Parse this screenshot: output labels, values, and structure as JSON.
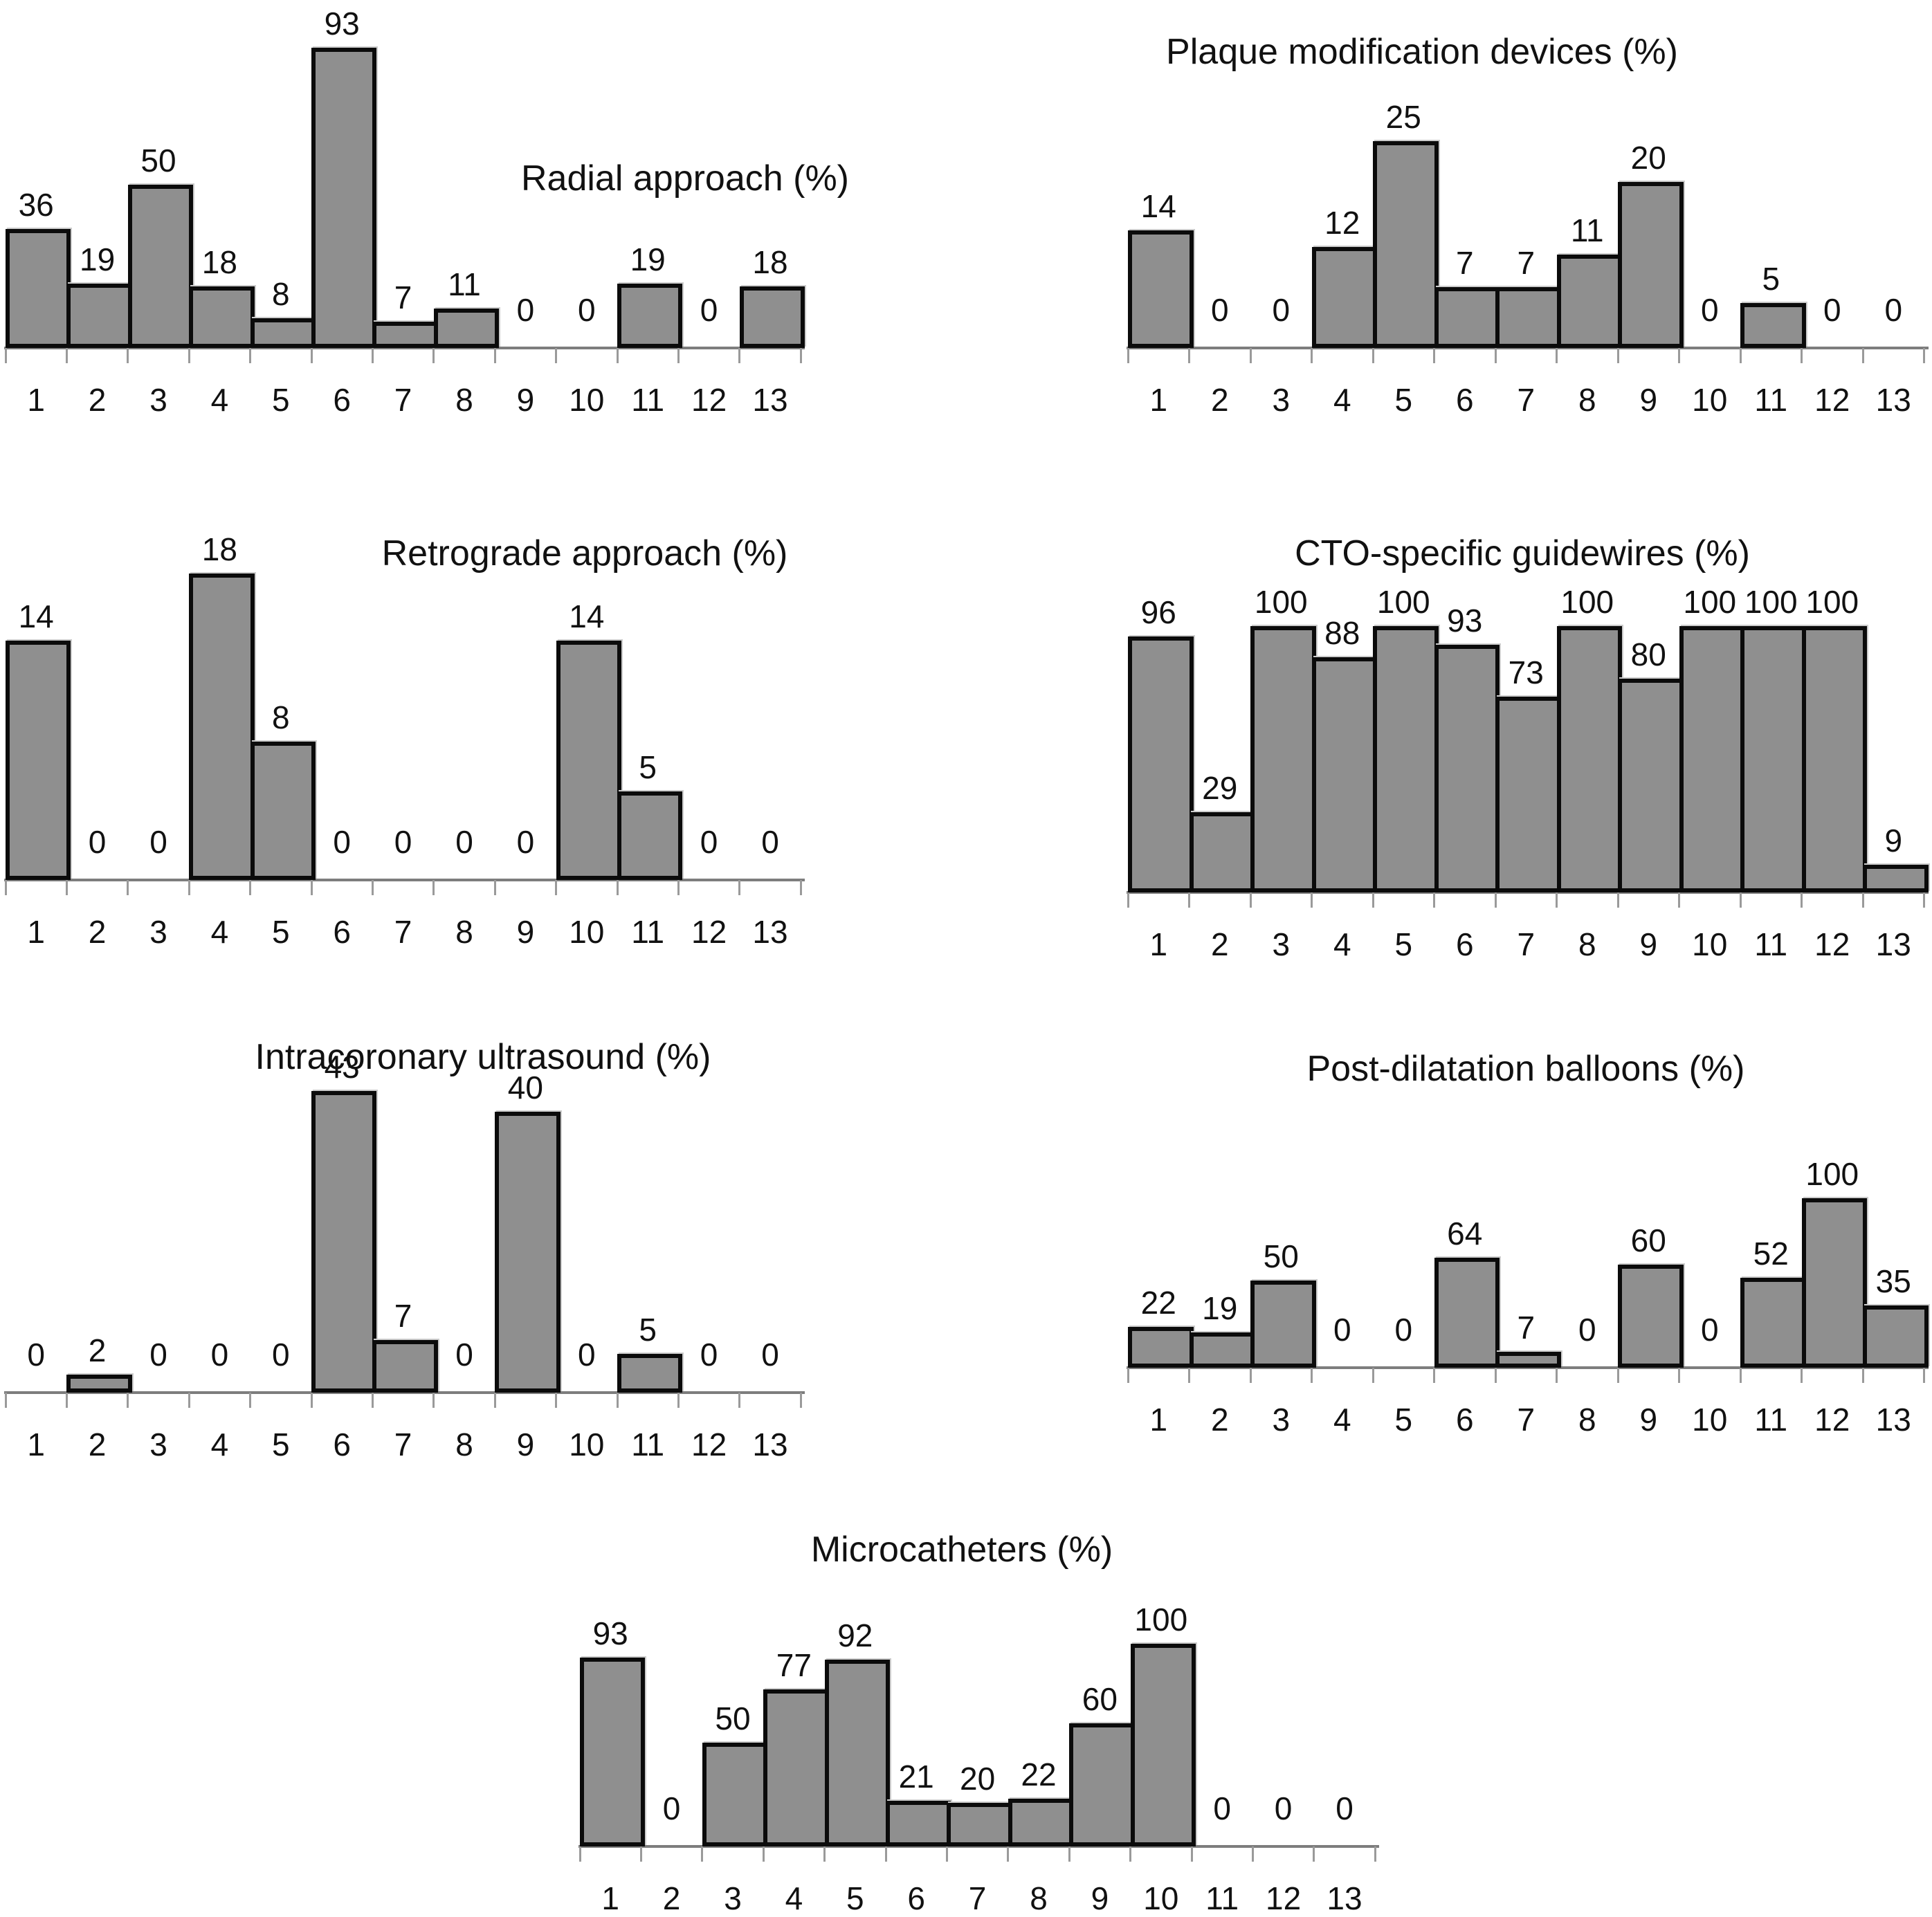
{
  "figure": {
    "background": "#ffffff",
    "bar_fill": "#8f8f8f",
    "bar_border": "#0b0b0b",
    "axis_color": "#7d7d7d",
    "tick_color": "#9a9a9a",
    "text_color": "#111111"
  },
  "chart_data": [
    {
      "type": "bar",
      "title": "Radial approach (%)",
      "unit": "%",
      "xlabel": "",
      "ylabel": "",
      "grid": false,
      "legend": null,
      "categories": [
        "1",
        "2",
        "3",
        "4",
        "5",
        "6",
        "7",
        "8",
        "9",
        "10",
        "11",
        "12",
        "13"
      ],
      "values": [
        36,
        19,
        50,
        18,
        8,
        93,
        7,
        11,
        0,
        0,
        19,
        0,
        18
      ],
      "ylim": [
        0,
        93
      ]
    },
    {
      "type": "bar",
      "title": "Plaque modification devices (%)",
      "unit": "%",
      "xlabel": "",
      "ylabel": "",
      "grid": false,
      "legend": null,
      "categories": [
        "1",
        "2",
        "3",
        "4",
        "5",
        "6",
        "7",
        "8",
        "9",
        "10",
        "11",
        "12",
        "13"
      ],
      "values": [
        14,
        0,
        0,
        12,
        25,
        7,
        7,
        11,
        20,
        0,
        5,
        0,
        0
      ],
      "ylim": [
        0,
        25
      ]
    },
    {
      "type": "bar",
      "title": "Retrograde approach (%)",
      "unit": "%",
      "xlabel": "",
      "ylabel": "",
      "grid": false,
      "legend": null,
      "categories": [
        "1",
        "2",
        "3",
        "4",
        "5",
        "6",
        "7",
        "8",
        "9",
        "10",
        "11",
        "12",
        "13"
      ],
      "values": [
        14,
        0,
        0,
        18,
        8,
        0,
        0,
        0,
        0,
        14,
        5,
        0,
        0
      ],
      "ylim": [
        0,
        18
      ]
    },
    {
      "type": "bar",
      "title": "CTO-specific guidewires (%)",
      "unit": "%",
      "xlabel": "",
      "ylabel": "",
      "grid": false,
      "legend": null,
      "categories": [
        "1",
        "2",
        "3",
        "4",
        "5",
        "6",
        "7",
        "8",
        "9",
        "10",
        "11",
        "12",
        "13"
      ],
      "values": [
        96,
        29,
        100,
        88,
        100,
        93,
        73,
        100,
        80,
        100,
        100,
        100,
        9
      ],
      "ylim": [
        0,
        100
      ]
    },
    {
      "type": "bar",
      "title": "Intracoronary ultrasound (%)",
      "unit": "%",
      "xlabel": "",
      "ylabel": "",
      "grid": false,
      "legend": null,
      "categories": [
        "1",
        "2",
        "3",
        "4",
        "5",
        "6",
        "7",
        "8",
        "9",
        "10",
        "11",
        "12",
        "13"
      ],
      "values": [
        0,
        2,
        0,
        0,
        0,
        43,
        7,
        0,
        40,
        0,
        5,
        0,
        0
      ],
      "ylim": [
        0,
        43
      ]
    },
    {
      "type": "bar",
      "title": "Post-dilatation balloons (%)",
      "unit": "%",
      "xlabel": "",
      "ylabel": "",
      "grid": false,
      "legend": null,
      "categories": [
        "1",
        "2",
        "3",
        "4",
        "5",
        "6",
        "7",
        "8",
        "9",
        "10",
        "11",
        "12",
        "13"
      ],
      "values": [
        22,
        19,
        50,
        0,
        0,
        64,
        7,
        0,
        60,
        0,
        52,
        100,
        35
      ],
      "ylim": [
        0,
        100
      ]
    },
    {
      "type": "bar",
      "title": "Microcatheters (%)",
      "unit": "%",
      "xlabel": "",
      "ylabel": "",
      "grid": false,
      "legend": null,
      "categories": [
        "1",
        "2",
        "3",
        "4",
        "5",
        "6",
        "7",
        "8",
        "9",
        "10",
        "11",
        "12",
        "13"
      ],
      "values": [
        93,
        0,
        50,
        77,
        92,
        21,
        20,
        22,
        60,
        100,
        0,
        0,
        0
      ],
      "ylim": [
        0,
        100
      ]
    }
  ]
}
